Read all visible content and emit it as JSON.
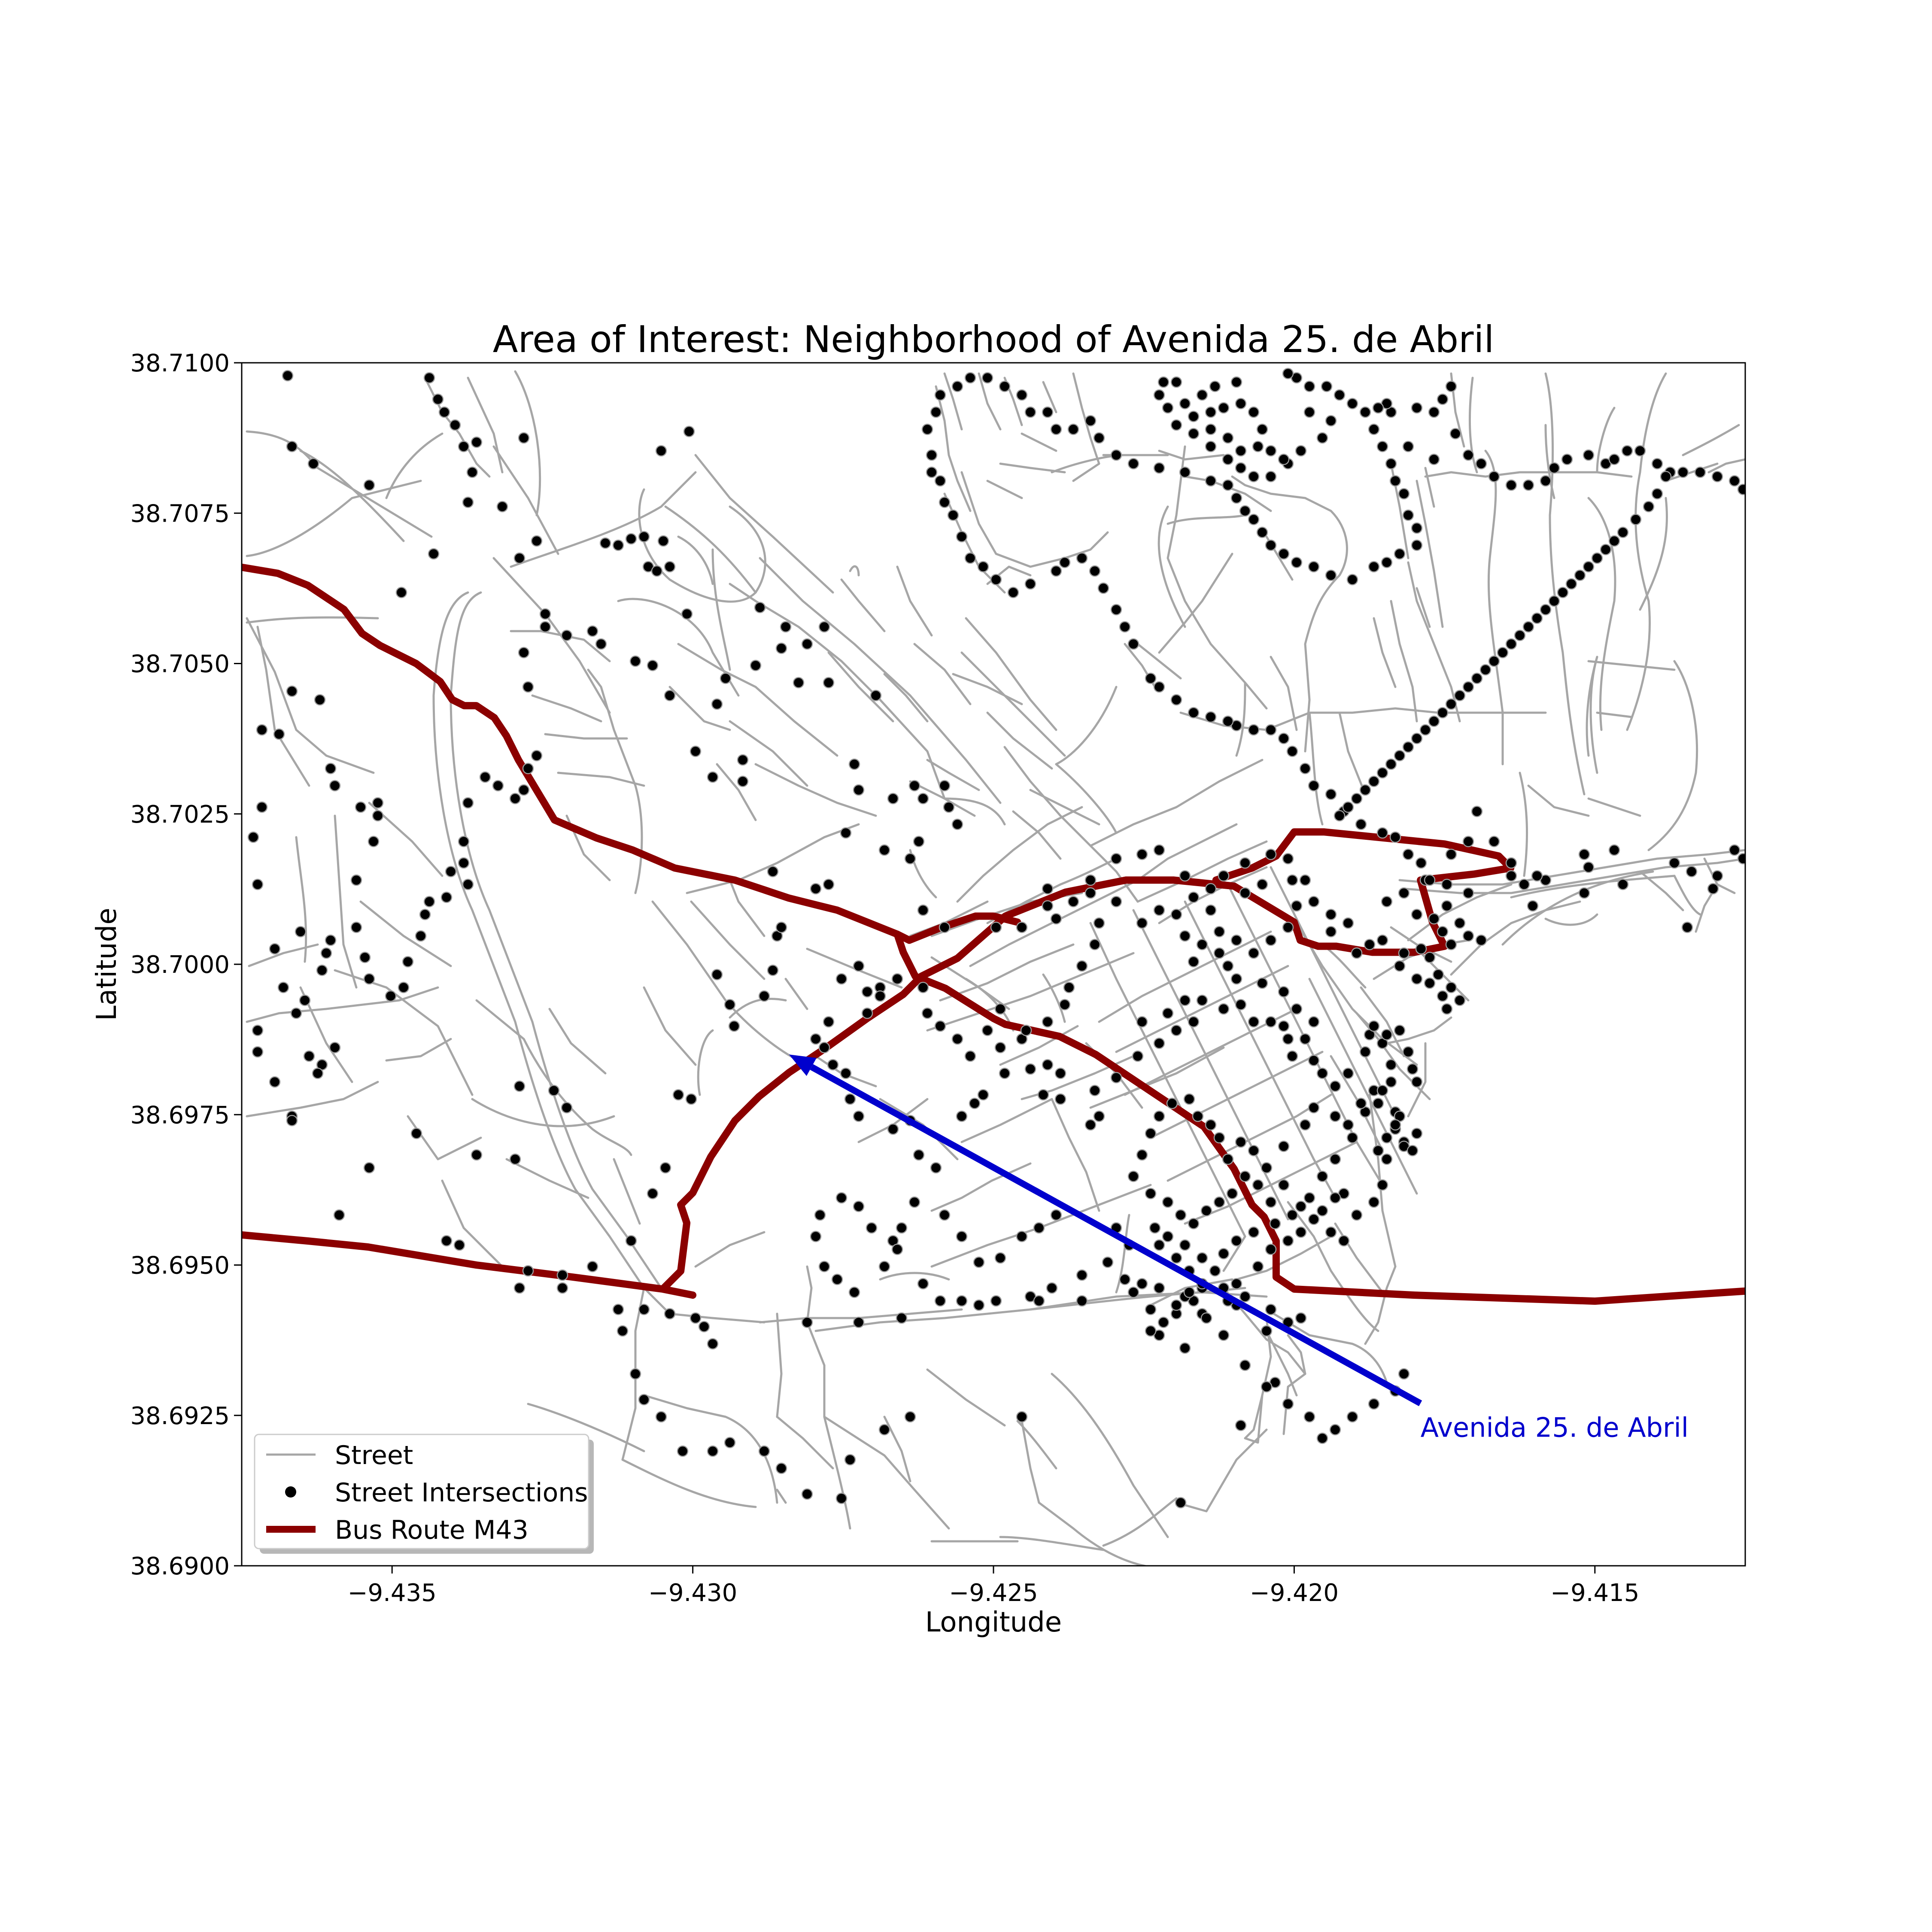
{
  "chart_data": {
    "type": "map",
    "title": "Area of Interest: Neighborhood of Avenida 25. de Abril",
    "xlabel": "Longitude",
    "ylabel": "Latitude",
    "xlim": [
      -9.4375,
      -9.4125
    ],
    "ylim": [
      38.69,
      38.71
    ],
    "x_ticks": [
      -9.435,
      -9.43,
      -9.425,
      -9.42,
      -9.415
    ],
    "x_tick_labels": [
      "−9.435",
      "−9.430",
      "−9.425",
      "−9.420",
      "−9.415"
    ],
    "y_ticks": [
      38.69,
      38.6925,
      38.695,
      38.6975,
      38.7,
      38.7025,
      38.705,
      38.7075,
      38.71
    ],
    "y_tick_labels": [
      "38.6900",
      "38.6925",
      "38.6950",
      "38.6975",
      "38.7000",
      "38.7025",
      "38.7050",
      "38.7075",
      "38.7100"
    ],
    "grid": false,
    "legend_position": "lower-left",
    "legend": [
      {
        "label": "Street",
        "kind": "line",
        "color": "#a6a6a6"
      },
      {
        "label": "Street Intersections",
        "kind": "point",
        "color": "#000000"
      },
      {
        "label": "Bus Route M43",
        "kind": "thick-line",
        "color": "#8b0000"
      }
    ],
    "colors": {
      "street": "#a6a6a6",
      "intersection": "#000000",
      "route": "#8b0000",
      "annotation": "#0000cd"
    },
    "annotation": {
      "text": "Avenida 25. de Abril",
      "point": [
        -9.4284,
        38.6985
      ],
      "text_at": [
        -9.4179,
        38.6927
      ]
    },
    "bus_route": {
      "name": "Bus Route M43",
      "segments": [
        [
          [
            -9.4375,
            38.7066
          ],
          [
            -9.4369,
            38.7065
          ],
          [
            -9.4364,
            38.7063
          ],
          [
            -9.4358,
            38.7059
          ],
          [
            -9.4355,
            38.7055
          ],
          [
            -9.4352,
            38.7053
          ],
          [
            -9.4346,
            38.705
          ],
          [
            -9.4342,
            38.7047
          ],
          [
            -9.434,
            38.7044
          ],
          [
            -9.4338,
            38.7043
          ],
          [
            -9.4336,
            38.7043
          ],
          [
            -9.4333,
            38.7041
          ],
          [
            -9.4331,
            38.7038
          ],
          [
            -9.4329,
            38.7034
          ],
          [
            -9.4326,
            38.7029
          ],
          [
            -9.4323,
            38.7024
          ],
          [
            -9.4316,
            38.7021
          ],
          [
            -9.431,
            38.7019
          ],
          [
            -9.4303,
            38.7016
          ],
          [
            -9.4293,
            38.7014
          ],
          [
            -9.4284,
            38.7011
          ],
          [
            -9.4276,
            38.7009
          ],
          [
            -9.4266,
            38.7005
          ],
          [
            -9.4265,
            38.7002
          ],
          [
            -9.4263,
            38.6998
          ],
          [
            -9.4258,
            38.6996
          ],
          [
            -9.425,
            38.6991
          ],
          [
            -9.4248,
            38.699
          ],
          [
            -9.4239,
            38.6988
          ],
          [
            -9.4233,
            38.6985
          ],
          [
            -9.4227,
            38.6981
          ],
          [
            -9.4215,
            38.6973
          ],
          [
            -9.421,
            38.6966
          ],
          [
            -9.4207,
            38.696
          ],
          [
            -9.4205,
            38.6958
          ],
          [
            -9.4203,
            38.6954
          ],
          [
            -9.4203,
            38.6948
          ],
          [
            -9.42,
            38.6946
          ],
          [
            -9.418,
            38.6945
          ],
          [
            -9.415,
            38.6944
          ],
          [
            -9.412,
            38.6946
          ],
          [
            -9.41,
            38.6945
          ],
          [
            -9.4077,
            38.6942
          ],
          [
            -9.4062,
            38.6943
          ],
          [
            -9.4055,
            38.6944
          ]
        ],
        [
          [
            -9.4375,
            38.6955
          ],
          [
            -9.4364,
            38.6954
          ],
          [
            -9.4354,
            38.6953
          ],
          [
            -9.4342,
            38.6951
          ],
          [
            -9.4336,
            38.695
          ],
          [
            -9.432,
            38.6948
          ],
          [
            -9.4305,
            38.6946
          ],
          [
            -9.43,
            38.6945
          ],
          [
            -9.4305,
            38.6946
          ],
          [
            -9.4302,
            38.6949
          ],
          [
            -9.4301,
            38.6957
          ],
          [
            -9.4302,
            38.696
          ],
          [
            -9.43,
            38.6962
          ],
          [
            -9.4297,
            38.6968
          ],
          [
            -9.4293,
            38.6974
          ],
          [
            -9.4289,
            38.6978
          ],
          [
            -9.4284,
            38.6982
          ],
          [
            -9.4278,
            38.6986
          ],
          [
            -9.4271,
            38.6991
          ],
          [
            -9.4265,
            38.6995
          ],
          [
            -9.4262,
            38.6998
          ],
          [
            -9.4256,
            38.7001
          ],
          [
            -9.4248,
            38.7008
          ],
          [
            -9.4238,
            38.7012
          ],
          [
            -9.4228,
            38.7014
          ],
          [
            -9.422,
            38.7014
          ],
          [
            -9.421,
            38.7013
          ],
          [
            -9.4205,
            38.701
          ],
          [
            -9.42,
            38.7007
          ],
          [
            -9.4199,
            38.7004
          ],
          [
            -9.4196,
            38.7003
          ],
          [
            -9.4193,
            38.7003
          ],
          [
            -9.4187,
            38.7002
          ],
          [
            -9.418,
            38.7002
          ],
          [
            -9.4175,
            38.7003
          ],
          [
            -9.4177,
            38.7007
          ],
          [
            -9.4179,
            38.7014
          ],
          [
            -9.417,
            38.7015
          ],
          [
            -9.4164,
            38.7016
          ],
          [
            -9.4166,
            38.7018
          ],
          [
            -9.4175,
            38.702
          ],
          [
            -9.4185,
            38.7021
          ],
          [
            -9.4195,
            38.7022
          ],
          [
            -9.42,
            38.7022
          ],
          [
            -9.4203,
            38.7018
          ],
          [
            -9.4207,
            38.7016
          ],
          [
            -9.4213,
            38.7014
          ]
        ],
        [
          [
            -9.4266,
            38.7005
          ],
          [
            -9.4264,
            38.7004
          ],
          [
            -9.4259,
            38.7006
          ],
          [
            -9.4253,
            38.7008
          ],
          [
            -9.425,
            38.7008
          ],
          [
            -9.4246,
            38.7007
          ]
        ]
      ]
    }
  }
}
